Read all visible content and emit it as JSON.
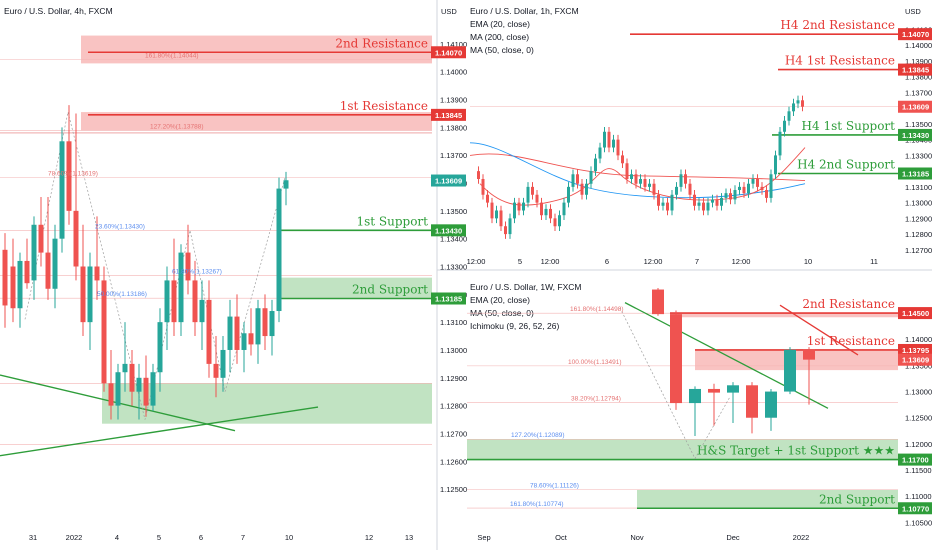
{
  "colors": {
    "red": "#e53935",
    "green": "#2e9d3a",
    "bull": "#26a69a",
    "bear": "#ef5350",
    "fib_red": "#e57373",
    "fib_blue": "#5b8def",
    "ema": "#ef5350",
    "ma": "#2196f3"
  },
  "chart_data": [
    {
      "type": "candlestick",
      "title": "Euro / U.S. Dollar, 4h, FXCM",
      "currency": "USD",
      "price_ticks": [
        "1.14100",
        "1.14000",
        "1.13900",
        "1.13800",
        "1.13700",
        "1.13600",
        "1.13500",
        "1.13400",
        "1.13300",
        "1.13200",
        "1.13100",
        "1.13000",
        "1.12900",
        "1.12800",
        "1.12700",
        "1.12600",
        "1.12500"
      ],
      "time_ticks": [
        "31",
        "2022",
        "4",
        "5",
        "6",
        "7",
        "10",
        "12",
        "13"
      ],
      "price_tags": [
        {
          "value": "1.14070",
          "color": "#e53935"
        },
        {
          "value": "1.13845",
          "color": "#e53935"
        },
        {
          "value": "1.13609",
          "color": "#26a69a"
        },
        {
          "value": "1.13430",
          "color": "#2e9d3a"
        },
        {
          "value": "1.13185",
          "color": "#2e9d3a"
        }
      ],
      "levels": [
        {
          "label": "2nd Resistance",
          "value": 1.1407,
          "color": "#e53935"
        },
        {
          "label": "1st Resistance",
          "value": 1.13845,
          "color": "#e53935"
        },
        {
          "label": "1st Support",
          "value": 1.1343,
          "color": "#2e9d3a"
        },
        {
          "label": "2nd Support",
          "value": 1.13185,
          "color": "#2e9d3a"
        }
      ],
      "fib_labels": [
        {
          "text": "161.80%(1.14044)",
          "value": 1.14044
        },
        {
          "text": "127.20%(1.13788)",
          "value": 1.13788
        },
        {
          "text": "78.60%(1.13619)",
          "value": 1.13619
        },
        {
          "text": "23.60%(1.13430)",
          "value": 1.1343
        },
        {
          "text": "61.80%(1.13267)",
          "value": 1.13267
        },
        {
          "text": "50.00%(1.13186)",
          "value": 1.13186
        }
      ]
    },
    {
      "type": "candlestick",
      "title": "Euro / U.S. Dollar, 1h, FXCM",
      "currency": "USD",
      "indicators": [
        "EMA (20, close)",
        "MA (200, close)",
        "MA (50, close, 0)"
      ],
      "price_ticks": [
        "1.14100",
        "1.14000",
        "1.13900",
        "1.13800",
        "1.13700",
        "1.13600",
        "1.13500",
        "1.13400",
        "1.13300",
        "1.13200",
        "1.13100",
        "1.13000",
        "1.12900",
        "1.12800",
        "1.12700"
      ],
      "time_ticks": [
        "12:00",
        "5",
        "12:00",
        "6",
        "12:00",
        "7",
        "12:00",
        "10",
        "11"
      ],
      "price_tags": [
        {
          "value": "1.14070",
          "color": "#e53935"
        },
        {
          "value": "1.13845",
          "color": "#e53935"
        },
        {
          "value": "1.13609",
          "color": "#ef5350"
        },
        {
          "value": "1.13430",
          "color": "#2e9d3a"
        },
        {
          "value": "1.13185",
          "color": "#2e9d3a"
        }
      ],
      "levels": [
        {
          "label": "H4 2nd Resistance",
          "value": 1.1407,
          "color": "#e53935"
        },
        {
          "label": "H4 1st Resistance",
          "value": 1.13845,
          "color": "#e53935"
        },
        {
          "label": "H4 1st Support",
          "value": 1.1343,
          "color": "#2e9d3a"
        },
        {
          "label": "H4 2nd Support",
          "value": 1.13185,
          "color": "#2e9d3a"
        }
      ]
    },
    {
      "type": "candlestick",
      "title": "Euro / U.S. Dollar, 1W, FXCM",
      "indicators": [
        "EMA (20, close)",
        "MA (50, close, 0)",
        "Ichimoku (9, 26, 52, 26)"
      ],
      "price_ticks": [
        "1.14500",
        "1.14000",
        "1.13500",
        "1.13000",
        "1.12500",
        "1.12000",
        "1.11500",
        "1.11000",
        "1.10500"
      ],
      "time_ticks": [
        "Sep",
        "Oct",
        "Nov",
        "Dec",
        "2022"
      ],
      "price_tags": [
        {
          "value": "1.14500",
          "color": "#e53935"
        },
        {
          "value": "1.13795",
          "color": "#e53935"
        },
        {
          "value": "1.13609",
          "color": "#ef5350"
        },
        {
          "value": "1.11700",
          "color": "#2e9d3a"
        },
        {
          "value": "1.10770",
          "color": "#2e9d3a"
        }
      ],
      "levels": [
        {
          "label": "2nd Resistance",
          "value": 1.145,
          "color": "#e53935"
        },
        {
          "label": "1st Resistance",
          "value": 1.13795,
          "color": "#e53935"
        },
        {
          "label": "H&S Target + 1st Support ★★★",
          "value": 1.117,
          "color": "#2e9d3a"
        },
        {
          "label": "2nd Support",
          "value": 1.1077,
          "color": "#2e9d3a"
        }
      ],
      "fib_labels": [
        {
          "text": "161.80%(1.14498)",
          "value": 1.14498
        },
        {
          "text": "38.20%(1.12794)",
          "value": 1.12794
        },
        {
          "text": "100.00%(1.13491)",
          "value": 1.13491
        },
        {
          "text": "127.20%(1.12089)",
          "value": 1.12089
        },
        {
          "text": "78.60%(1.11126)",
          "value": 1.11126
        },
        {
          "text": "161.80%(1.10774)",
          "value": 1.10774
        }
      ]
    }
  ]
}
